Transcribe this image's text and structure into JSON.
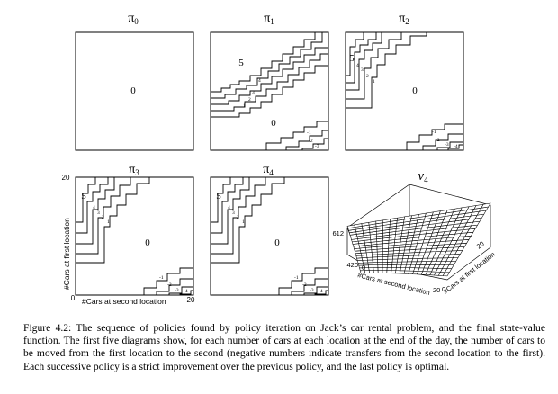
{
  "panels": [
    {
      "id": "pi0",
      "title_main": "π",
      "title_sub": "0",
      "big_labels": [
        {
          "text": "0"
        }
      ],
      "small_labels": []
    },
    {
      "id": "pi1",
      "title_main": "π",
      "title_sub": "1",
      "big_labels": [
        {
          "text": "5"
        },
        {
          "text": "0"
        }
      ],
      "small_labels": [
        "4",
        "3",
        "2",
        "1",
        "-1",
        "-2",
        "-3"
      ]
    },
    {
      "id": "pi2",
      "title_main": "π",
      "title_sub": "2",
      "big_labels": [
        {
          "text": "5"
        },
        {
          "text": "0"
        }
      ],
      "small_labels": [
        "4",
        "3",
        "2",
        "1",
        "-1",
        "-2",
        "-3",
        "-4"
      ]
    },
    {
      "id": "pi3",
      "title_main": "π",
      "title_sub": "3",
      "big_labels": [
        {
          "text": "5"
        },
        {
          "text": "0"
        }
      ],
      "small_labels": [
        "4",
        "3",
        "2",
        "1",
        "-1",
        "-2",
        "-3",
        "-4"
      ]
    },
    {
      "id": "pi4",
      "title_main": "π",
      "title_sub": "4",
      "big_labels": [
        {
          "text": "5"
        },
        {
          "text": "0"
        }
      ],
      "small_labels": [
        "4",
        "3",
        "2",
        "1",
        "-1",
        "-2",
        "-3",
        "-4"
      ]
    }
  ],
  "axes": {
    "ylabel": "#Cars at first location",
    "xlabel": "#Cars at second location",
    "y_tick_top": "20",
    "x_tick_left": "0",
    "x_tick_right": "20"
  },
  "value_plot": {
    "title_main": "v",
    "title_sub": "4",
    "z_tick_top": "612",
    "z_tick_bottom": "420",
    "origin_tick": "0",
    "xlabel": "#Cars at second location",
    "ylabel": "#Cars at first location",
    "x_tick": "20",
    "y_tick_0": "0",
    "y_tick_20": "20"
  },
  "caption": {
    "label": "Figure 4.2:",
    "text": "The sequence of policies found by policy iteration on Jack’s car rental problem, and the final state-value function. The first five diagrams show, for each number of cars at each location at the end of the day, the number of cars to be moved from the first location to the second (negative numbers indicate transfers from the second location to the first). Each successive policy is a strict improvement over the previous policy, and the last policy is optimal."
  }
}
